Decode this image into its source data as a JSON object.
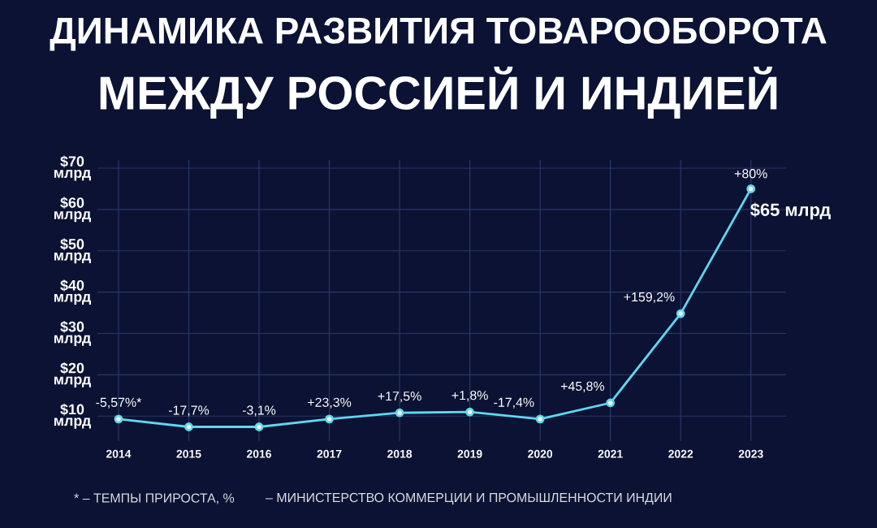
{
  "chart_data": {
    "type": "line",
    "title": "ДИНАМИКА РАЗВИТИЯ ТОВАРООБОРОТА",
    "subtitle": "МЕЖДУ РОССИЕЙ И ИНДИЕЙ",
    "categories": [
      "2014",
      "2015",
      "2016",
      "2017",
      "2018",
      "2019",
      "2020",
      "2021",
      "2022",
      "2023"
    ],
    "values": [
      9.3,
      7.4,
      7.4,
      9.3,
      10.8,
      11.0,
      9.3,
      13.2,
      34.8,
      65
    ],
    "color": "#5fd8f0",
    "marker": "circle",
    "grid": true,
    "ylim": [
      4,
      72
    ],
    "yticks": [
      {
        "value": 10,
        "label": "$10 млрд"
      },
      {
        "value": 20,
        "label": "$20 млрд"
      },
      {
        "value": 30,
        "label": "$30 млрд"
      },
      {
        "value": 40,
        "label": "$40 млрд"
      },
      {
        "value": 50,
        "label": "$50 млрд"
      },
      {
        "value": 60,
        "label": "$60 млрд"
      },
      {
        "value": 70,
        "label": "$70 млрд"
      }
    ],
    "annotations": [
      {
        "text": "$65 млрд",
        "x": "2023",
        "y": 65
      },
      {
        "text": "-5,57%*",
        "x": "2014",
        "y": 9.3
      },
      {
        "text": "-17,7%",
        "x": "2015",
        "y": 7.4
      },
      {
        "text": "-3,1%",
        "x": "2016",
        "y": 7.4
      },
      {
        "text": "+23,3%",
        "x": "2017",
        "y": 9.3
      },
      {
        "text": "+17,5%",
        "x": "2018",
        "y": 10.8
      },
      {
        "text": "+1,8%",
        "x": "2019",
        "y": 11.0
      },
      {
        "text": "-17,4%",
        "x": "2020",
        "y": 9.3
      },
      {
        "text": "+45,8%",
        "x": "2021",
        "y": 13.2
      },
      {
        "text": "+159,2%",
        "x": "2022",
        "y": 34.8
      },
      {
        "text": "+80%",
        "x": "2023",
        "y": 65
      },
      "* – ТЕМПЫ ПРИРОСТА, %",
      "– МИНИСТЕРСТВО КОММЕРЦИИ И ПРОМЫШЛЕННОСТИ ИНДИИ"
    ]
  }
}
